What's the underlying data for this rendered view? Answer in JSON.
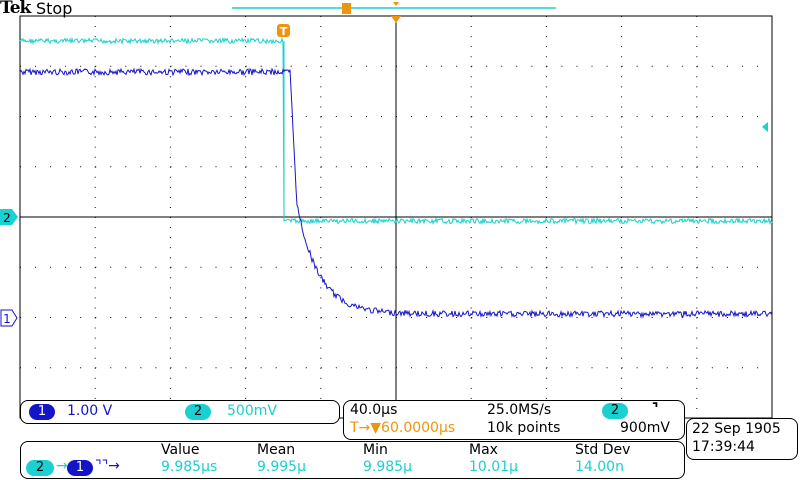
{
  "header": {
    "brand": "Tek",
    "state": "Stop"
  },
  "colors": {
    "ch1": "#1515c8",
    "ch2": "#1ad0d0",
    "trigger": "#f0940a",
    "grid": "#000000"
  },
  "markers": {
    "ch1": "1",
    "ch2": "2",
    "trigger": "T"
  },
  "channels": {
    "ch1_label": "1",
    "ch1_scale": "1.00 V",
    "ch2_label": "2",
    "ch2_scale": "500mV"
  },
  "timebase": {
    "scale": "40.0µs",
    "sample_rate": "25.0MS/s",
    "trigger_source": "2",
    "trigger_slope": "falling-edge-icon",
    "trigger_position": "T→▼60.0000µs",
    "record_length": "10k points",
    "trigger_level": "900mV"
  },
  "datetime": {
    "date": "22 Sep  1905",
    "time": "17:39:44"
  },
  "measurement": {
    "source_from": "2",
    "source_to": "1",
    "headers": [
      "Value",
      "Mean",
      "Min",
      "Max",
      "Std Dev"
    ],
    "values": [
      "9.985µs",
      "9.995µ",
      "9.985µ",
      "10.01µ",
      "14.00n"
    ]
  }
}
